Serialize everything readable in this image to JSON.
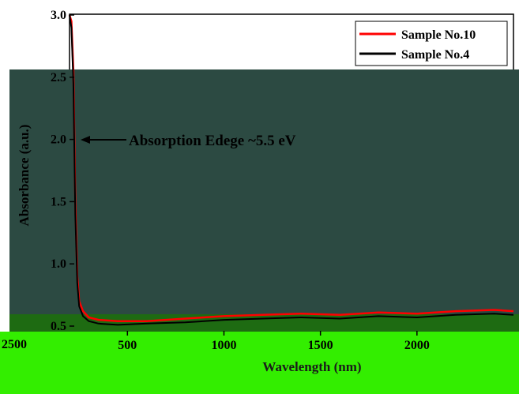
{
  "chart_data": {
    "type": "line",
    "title": "",
    "xlabel": "Wavelength (nm)",
    "ylabel": "Absorbance (a.u.)",
    "xlim": [
      200,
      2500
    ],
    "ylim": [
      0.5,
      3.0
    ],
    "xticks": [
      500,
      1000,
      1500,
      2000
    ],
    "yticks": [
      0.5,
      1.0,
      1.5,
      2.0,
      2.5,
      3.0
    ],
    "xtick_labels": [
      "500",
      "1000",
      "1500",
      "2000"
    ],
    "ytick_labels": [
      "0.5",
      "1.0",
      "1.5",
      "2.0",
      "2.5",
      "3.0"
    ],
    "stray_xtick_label": "2500",
    "legend_position": "top-right",
    "series": [
      {
        "name": "Sample No.10",
        "color": "#ff0000",
        "x": [
          200,
          210,
          220,
          230,
          240,
          250,
          270,
          300,
          350,
          450,
          600,
          800,
          1000,
          1200,
          1400,
          1600,
          1800,
          2000,
          2200,
          2400,
          2500
        ],
        "y": [
          3.0,
          2.95,
          2.55,
          1.5,
          0.9,
          0.7,
          0.62,
          0.57,
          0.55,
          0.54,
          0.54,
          0.56,
          0.58,
          0.59,
          0.6,
          0.59,
          0.61,
          0.6,
          0.62,
          0.63,
          0.62
        ]
      },
      {
        "name": "Sample No.4",
        "color": "#000000",
        "x": [
          200,
          210,
          220,
          230,
          240,
          250,
          270,
          300,
          350,
          450,
          600,
          800,
          1000,
          1200,
          1400,
          1600,
          1800,
          2000,
          2200,
          2400,
          2500
        ],
        "y": [
          3.0,
          2.9,
          2.45,
          1.4,
          0.85,
          0.66,
          0.58,
          0.54,
          0.52,
          0.51,
          0.52,
          0.53,
          0.55,
          0.56,
          0.57,
          0.56,
          0.58,
          0.57,
          0.59,
          0.6,
          0.59
        ]
      }
    ],
    "annotation": {
      "text": "Absorption Edege ~5.5 eV",
      "arrow_to": {
        "x": 212,
        "y": 2.0
      }
    }
  },
  "colors": {
    "overlay_dark": "#2c4a42",
    "overlay_green": "#33ee00",
    "overlay_strip": "#1e6b12",
    "axis": "#000000"
  }
}
